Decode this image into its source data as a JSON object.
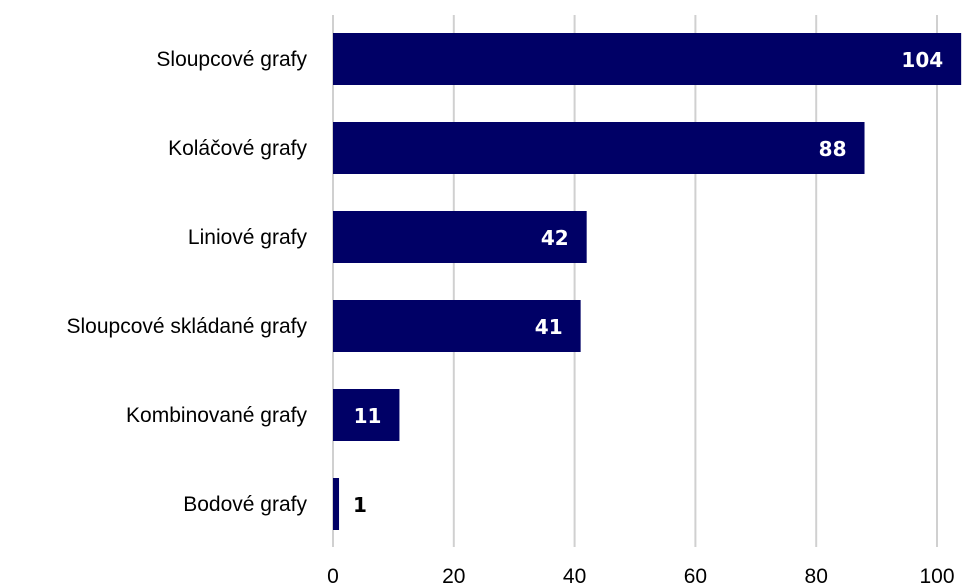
{
  "chart_data": {
    "type": "bar",
    "orientation": "horizontal",
    "title": "",
    "xlabel": "",
    "ylabel": "",
    "categories": [
      "Sloupcové grafy",
      "Koláčové grafy",
      "Liniové grafy",
      "Sloupcové skládané grafy",
      "Kombinované grafy",
      "Bodové grafy"
    ],
    "values": [
      104,
      88,
      42,
      41,
      11,
      1
    ],
    "xlim": [
      0,
      104
    ],
    "xticks": [
      0,
      20,
      40,
      60,
      80,
      100
    ],
    "grid": "vertical",
    "legend": "none",
    "data_labels": [
      "104",
      "88",
      "42",
      "41",
      "11",
      "1"
    ],
    "bar_color": "#000066",
    "label_inside_color": "#ffffff",
    "label_outside_color": "#000000",
    "grid_color": "#d0d0d0"
  }
}
